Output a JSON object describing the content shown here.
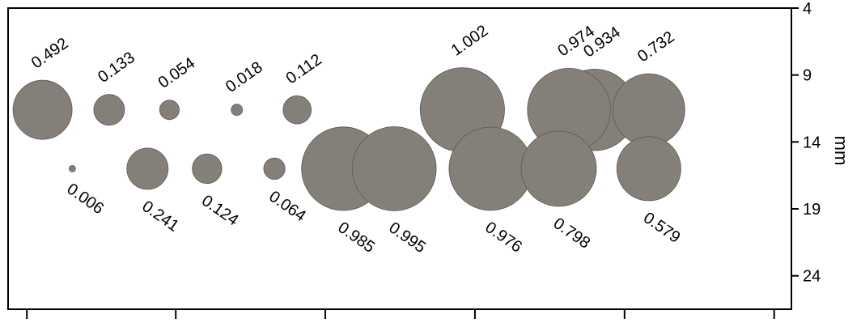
{
  "chart_data": {
    "type": "scatter",
    "title": "",
    "xlabel": "",
    "ylabel": "mm",
    "ylim": [
      4,
      26.5
    ],
    "y_inverted": true,
    "y_axis_side": "right",
    "yticks": [
      "4",
      "9",
      "14",
      "19",
      "24"
    ],
    "xlim": [
      0,
      1000
    ],
    "x_tick_positions": [
      24,
      214,
      405,
      596,
      787,
      978
    ],
    "grid": false,
    "bubble_size_meaning": "area proportional to labeled value",
    "bubble_color": "#847f78",
    "points": [
      {
        "x": 44,
        "y": 11.6,
        "value": 0.492,
        "label": "0.492",
        "label_side": "above"
      },
      {
        "x": 129,
        "y": 11.6,
        "value": 0.133,
        "label": "0.133",
        "label_side": "above"
      },
      {
        "x": 206,
        "y": 11.6,
        "value": 0.054,
        "label": "0.054",
        "label_side": "above"
      },
      {
        "x": 292,
        "y": 11.6,
        "value": 0.018,
        "label": "0.018",
        "label_side": "above"
      },
      {
        "x": 369,
        "y": 11.6,
        "value": 0.112,
        "label": "0.112",
        "label_side": "above"
      },
      {
        "x": 580,
        "y": 11.6,
        "value": 1.002,
        "label": "1.002",
        "label_side": "above"
      },
      {
        "x": 749,
        "y": 11.6,
        "value": 0.934,
        "label": "0.934",
        "label_side": "above"
      },
      {
        "x": 716,
        "y": 11.6,
        "value": 0.974,
        "label": "0.974",
        "label_side": "above"
      },
      {
        "x": 818,
        "y": 11.6,
        "value": 0.732,
        "label": "0.732",
        "label_side": "above"
      },
      {
        "x": 82,
        "y": 16.0,
        "value": 0.006,
        "label": "0.006",
        "label_side": "below"
      },
      {
        "x": 178,
        "y": 16.0,
        "value": 0.241,
        "label": "0.241",
        "label_side": "below"
      },
      {
        "x": 254,
        "y": 16.0,
        "value": 0.124,
        "label": "0.124",
        "label_side": "below"
      },
      {
        "x": 340,
        "y": 16.0,
        "value": 0.064,
        "label": "0.064",
        "label_side": "below"
      },
      {
        "x": 428,
        "y": 16.0,
        "value": 0.985,
        "label": "0.985",
        "label_side": "below"
      },
      {
        "x": 493,
        "y": 16.0,
        "value": 0.995,
        "label": "0.995",
        "label_side": "below"
      },
      {
        "x": 616,
        "y": 16.0,
        "value": 0.976,
        "label": "0.976",
        "label_side": "below"
      },
      {
        "x": 703,
        "y": 16.0,
        "value": 0.798,
        "label": "0.798",
        "label_side": "below"
      },
      {
        "x": 818,
        "y": 16.0,
        "value": 0.579,
        "label": "0.579",
        "label_side": "below"
      }
    ]
  }
}
